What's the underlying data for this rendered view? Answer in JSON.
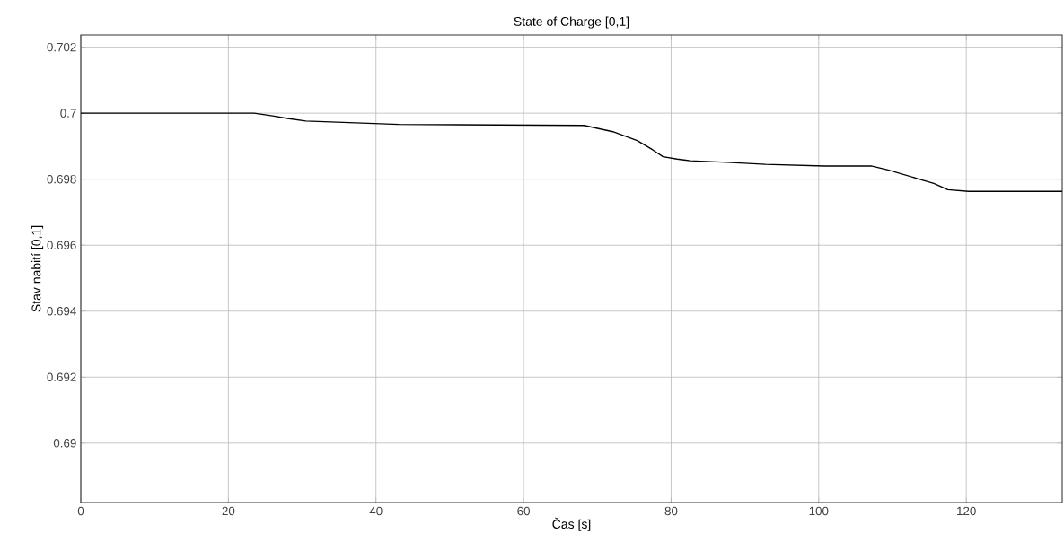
{
  "chart_data": {
    "type": "line",
    "title": "State of Charge [0,1]",
    "xlabel": "Čas [s]",
    "ylabel": "Stav nabití [0,1]",
    "xlim": [
      0,
      133
    ],
    "ylim": [
      0.6882,
      0.70237
    ],
    "xticks": [
      0,
      20,
      40,
      60,
      80,
      100,
      120
    ],
    "yticks": [
      0.69,
      0.692,
      0.694,
      0.696,
      0.698,
      0.7,
      0.702
    ],
    "grid": true,
    "line_style": "solid",
    "series": [
      {
        "color": "#000000",
        "x": [
          0,
          23.5,
          26,
          28,
          30.5,
          43.1,
          68.2,
          72.1,
          75.4,
          77.5,
          78.9,
          80.8,
          82.6,
          87.6,
          92.8,
          100.8,
          107.1,
          109.4,
          113.5,
          115.6,
          117.5,
          120.3,
          133
        ],
        "values": [
          0.7,
          0.7,
          0.69992,
          0.69984,
          0.69976,
          0.69966,
          0.69963,
          0.69944,
          0.69917,
          0.69889,
          0.69868,
          0.69861,
          0.69856,
          0.69851,
          0.69845,
          0.6984,
          0.6984,
          0.69828,
          0.69801,
          0.69787,
          0.69768,
          0.69763,
          0.69763
        ]
      }
    ]
  }
}
